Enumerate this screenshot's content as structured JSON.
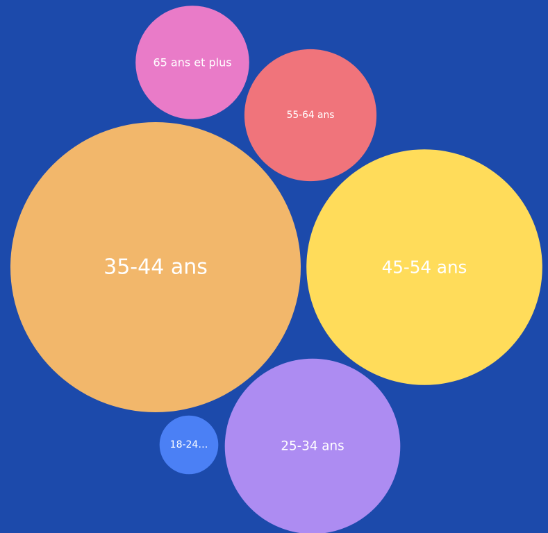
{
  "chart_data": {
    "type": "bubble",
    "title": "",
    "background_color": "#1c4aab",
    "label_color": "#ffffff",
    "items": [
      {
        "label": "35-44 ans",
        "value": 100,
        "color": "#f2b76b"
      },
      {
        "label": "45-54 ans",
        "value": 66,
        "color": "#ffdc5a"
      },
      {
        "label": "25-34 ans",
        "value": 36.5,
        "color": "#ad8cf2"
      },
      {
        "label": "55-64 ans",
        "value": 20.7,
        "color": "#f0747b"
      },
      {
        "label": "65 ans et plus",
        "value": 15.3,
        "color": "#e97bc8"
      },
      {
        "label": "18-24…",
        "value": 4.1,
        "color": "#4b80f5"
      }
    ]
  }
}
